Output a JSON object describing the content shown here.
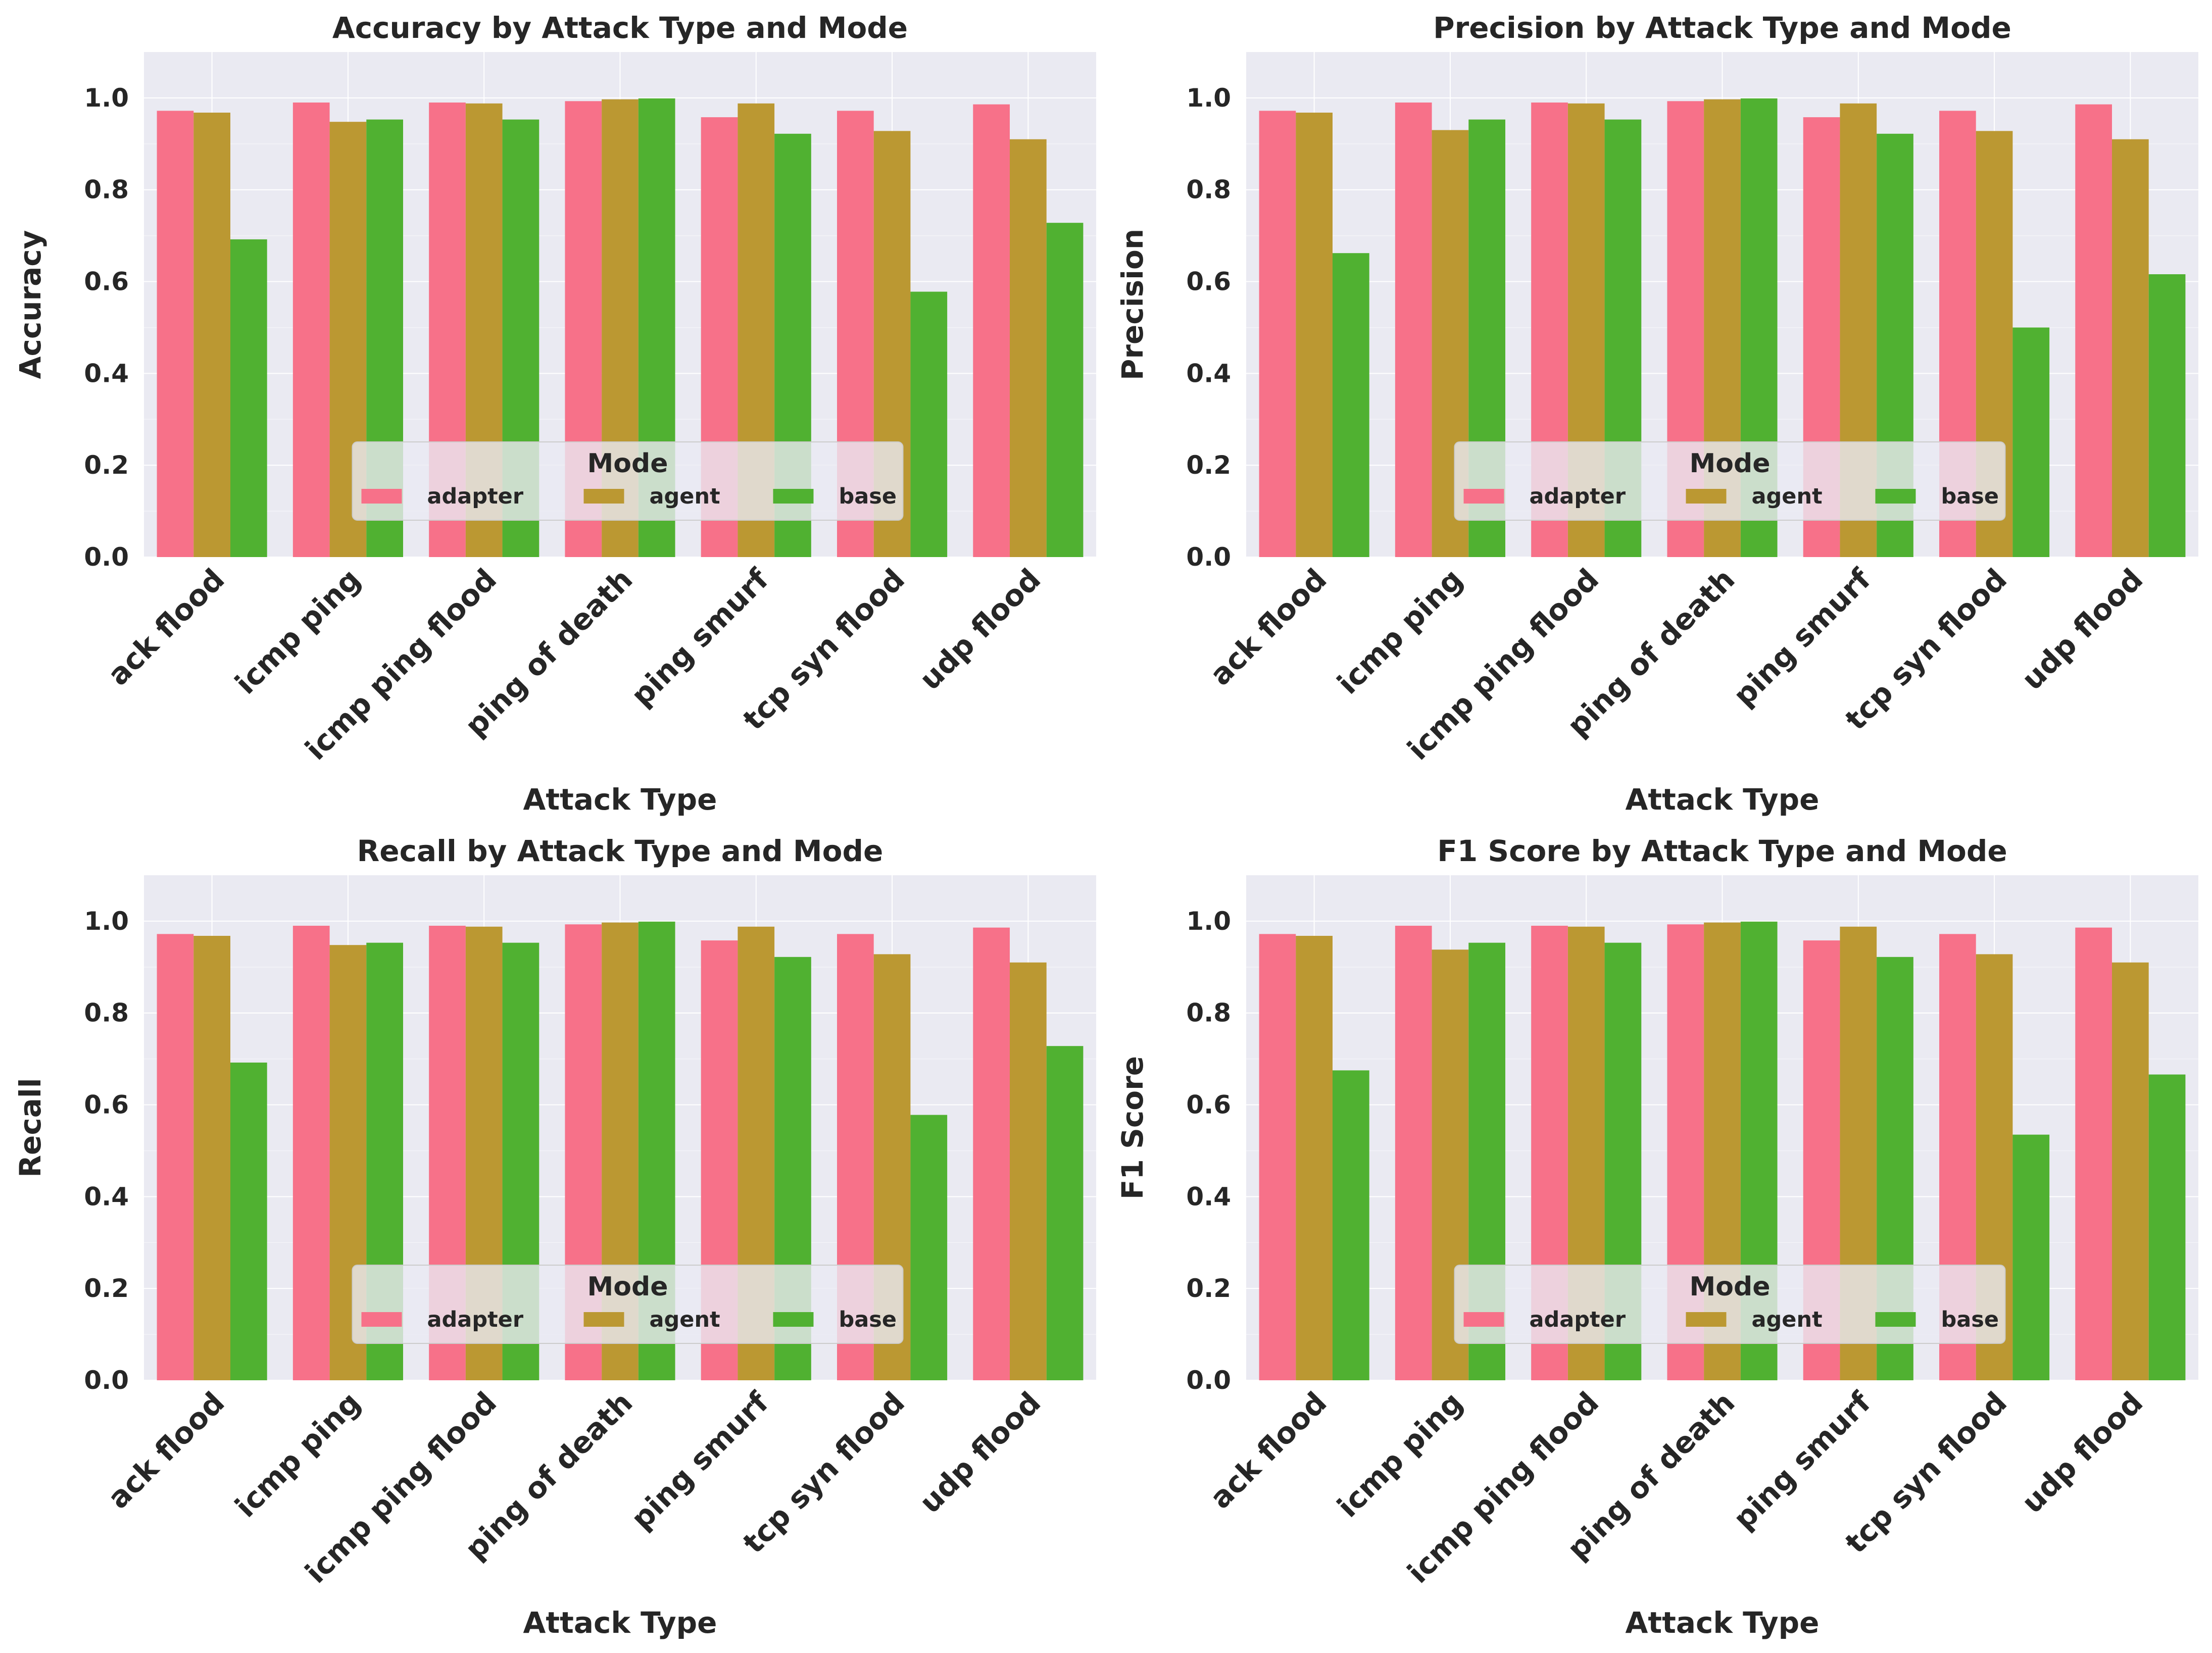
{
  "chart_data": [
    {
      "type": "bar",
      "title": "Accuracy by Attack Type and Mode",
      "xlabel": "Attack Type",
      "ylabel": "Accuracy",
      "ylim": [
        0,
        1.1
      ],
      "yticks": [
        "0.0",
        "0.2",
        "0.4",
        "0.6",
        "0.8",
        "1.0"
      ],
      "grid": true,
      "legend": {
        "title": "Mode",
        "placement": "lower-center"
      },
      "categories": [
        "ack flood",
        "icmp ping",
        "icmp ping flood",
        "ping of death",
        "ping smurf",
        "tcp syn flood",
        "udp flood"
      ],
      "series": [
        {
          "name": "adapter",
          "color": "#f77189",
          "values": [
            0.972,
            0.99,
            0.99,
            0.993,
            0.958,
            0.972,
            0.986
          ]
        },
        {
          "name": "agent",
          "color": "#bb9832",
          "values": [
            0.968,
            0.948,
            0.988,
            0.997,
            0.988,
            0.928,
            0.91
          ]
        },
        {
          "name": "base",
          "color": "#50b131",
          "values": [
            0.692,
            0.953,
            0.953,
            0.999,
            0.922,
            0.578,
            0.728
          ]
        }
      ]
    },
    {
      "type": "bar",
      "title": "Precision by Attack Type and Mode",
      "xlabel": "Attack Type",
      "ylabel": "Precision",
      "ylim": [
        0,
        1.1
      ],
      "yticks": [
        "0.0",
        "0.2",
        "0.4",
        "0.6",
        "0.8",
        "1.0"
      ],
      "grid": true,
      "legend": {
        "title": "Mode",
        "placement": "lower-center"
      },
      "categories": [
        "ack flood",
        "icmp ping",
        "icmp ping flood",
        "ping of death",
        "ping smurf",
        "tcp syn flood",
        "udp flood"
      ],
      "series": [
        {
          "name": "adapter",
          "color": "#f77189",
          "values": [
            0.972,
            0.99,
            0.99,
            0.993,
            0.958,
            0.972,
            0.986
          ]
        },
        {
          "name": "agent",
          "color": "#bb9832",
          "values": [
            0.968,
            0.93,
            0.988,
            0.997,
            0.988,
            0.928,
            0.91
          ]
        },
        {
          "name": "base",
          "color": "#50b131",
          "values": [
            0.662,
            0.953,
            0.953,
            0.999,
            0.922,
            0.5,
            0.616
          ]
        }
      ]
    },
    {
      "type": "bar",
      "title": "Recall by Attack Type and Mode",
      "xlabel": "Attack Type",
      "ylabel": "Recall",
      "ylim": [
        0,
        1.1
      ],
      "yticks": [
        "0.0",
        "0.2",
        "0.4",
        "0.6",
        "0.8",
        "1.0"
      ],
      "grid": true,
      "legend": {
        "title": "Mode",
        "placement": "lower-center"
      },
      "categories": [
        "ack flood",
        "icmp ping",
        "icmp ping flood",
        "ping of death",
        "ping smurf",
        "tcp syn flood",
        "udp flood"
      ],
      "series": [
        {
          "name": "adapter",
          "color": "#f77189",
          "values": [
            0.972,
            0.99,
            0.99,
            0.993,
            0.958,
            0.972,
            0.986
          ]
        },
        {
          "name": "agent",
          "color": "#bb9832",
          "values": [
            0.968,
            0.948,
            0.988,
            0.997,
            0.988,
            0.928,
            0.91
          ]
        },
        {
          "name": "base",
          "color": "#50b131",
          "values": [
            0.692,
            0.953,
            0.953,
            0.999,
            0.922,
            0.578,
            0.728
          ]
        }
      ]
    },
    {
      "type": "bar",
      "title": "F1 Score by Attack Type and Mode",
      "xlabel": "Attack Type",
      "ylabel": "F1 Score",
      "ylim": [
        0,
        1.1
      ],
      "yticks": [
        "0.0",
        "0.2",
        "0.4",
        "0.6",
        "0.8",
        "1.0"
      ],
      "grid": true,
      "legend": {
        "title": "Mode",
        "placement": "lower-center"
      },
      "categories": [
        "ack flood",
        "icmp ping",
        "icmp ping flood",
        "ping of death",
        "ping smurf",
        "tcp syn flood",
        "udp flood"
      ],
      "series": [
        {
          "name": "adapter",
          "color": "#f77189",
          "values": [
            0.972,
            0.99,
            0.99,
            0.993,
            0.958,
            0.972,
            0.986
          ]
        },
        {
          "name": "agent",
          "color": "#bb9832",
          "values": [
            0.968,
            0.938,
            0.988,
            0.997,
            0.988,
            0.928,
            0.91
          ]
        },
        {
          "name": "base",
          "color": "#50b131",
          "values": [
            0.675,
            0.953,
            0.953,
            0.999,
            0.922,
            0.535,
            0.666
          ]
        }
      ]
    }
  ]
}
